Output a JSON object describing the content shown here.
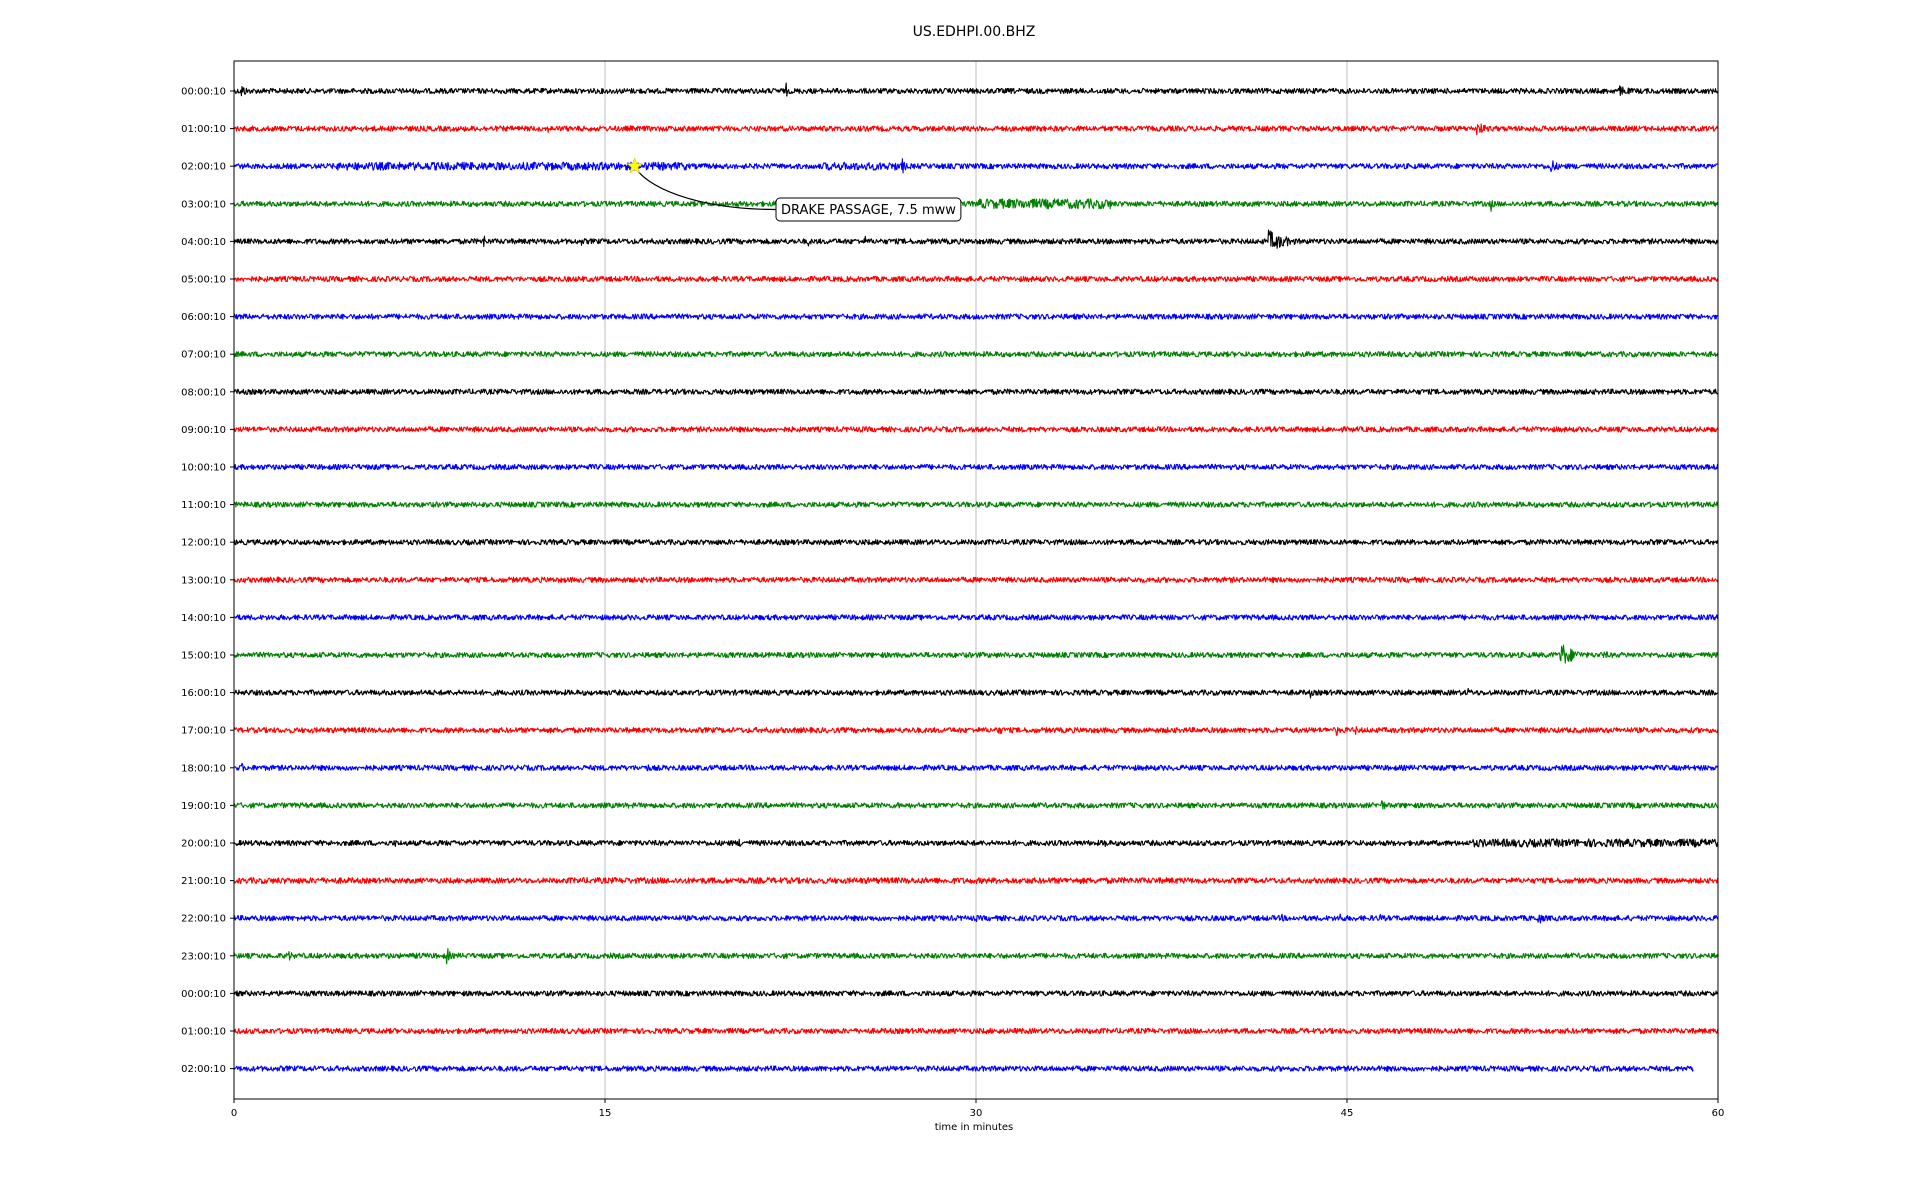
{
  "chart_data": {
    "type": "line",
    "title": "US.EDHPI.00.BHZ",
    "xlabel": "time in minutes",
    "ylabel": "",
    "xlim": [
      0,
      60
    ],
    "xticks": [
      0,
      15,
      30,
      45,
      60
    ],
    "grid": "vertical lines at x ticks",
    "line_colors": [
      "#000000",
      "#ff0000",
      "#0000ff",
      "#008000"
    ],
    "rows": [
      {
        "label": "00:00:10",
        "color": "#000000",
        "noise": 0.35,
        "x_end": 60,
        "events": [
          {
            "t": 0.3,
            "amp": 8,
            "dur": 0.6
          },
          {
            "t": 22.3,
            "amp": 12,
            "dur": 0.2
          },
          {
            "t": 56.0,
            "amp": 6,
            "dur": 1.5
          }
        ]
      },
      {
        "label": "01:00:10",
        "color": "#ff0000",
        "noise": 0.35,
        "x_end": 60,
        "events": [
          {
            "t": 12.7,
            "amp": 4,
            "dur": 0.2
          },
          {
            "t": 50.2,
            "amp": 8,
            "dur": 1.2
          }
        ]
      },
      {
        "label": "02:00:10",
        "color": "#0000ff",
        "noise": 0.35,
        "x_end": 60,
        "events": [
          {
            "t": 4.0,
            "amp": 4,
            "dur": 14.3
          },
          {
            "t": 23.8,
            "amp": 4,
            "dur": 3.2
          },
          {
            "t": 27.0,
            "amp": 10,
            "dur": 0.4
          },
          {
            "t": 53.2,
            "amp": 9,
            "dur": 0.8
          }
        ]
      },
      {
        "label": "03:00:10",
        "color": "#008000",
        "noise": 0.35,
        "x_end": 60,
        "events": [
          {
            "t": 5.2,
            "amp": 4,
            "dur": 1.0
          },
          {
            "t": 30.0,
            "amp": 5,
            "dur": 5.5
          },
          {
            "t": 50.8,
            "amp": 10,
            "dur": 0.3
          }
        ]
      },
      {
        "label": "04:00:10",
        "color": "#000000",
        "noise": 0.35,
        "x_end": 60,
        "events": [
          {
            "t": 4.7,
            "amp": 5,
            "dur": 0.3
          },
          {
            "t": 10.1,
            "amp": 10,
            "dur": 0.2
          },
          {
            "t": 14.0,
            "amp": 8,
            "dur": 0.2
          },
          {
            "t": 23.2,
            "amp": 6,
            "dur": 0.3
          },
          {
            "t": 25.5,
            "amp": 7,
            "dur": 0.3
          },
          {
            "t": 41.8,
            "amp": 12,
            "dur": 2.0
          }
        ]
      },
      {
        "label": "05:00:10",
        "color": "#ff0000",
        "noise": 0.35,
        "x_end": 60,
        "events": []
      },
      {
        "label": "06:00:10",
        "color": "#0000ff",
        "noise": 0.35,
        "x_end": 60,
        "events": []
      },
      {
        "label": "07:00:10",
        "color": "#008000",
        "noise": 0.35,
        "x_end": 60,
        "events": []
      },
      {
        "label": "08:00:10",
        "color": "#000000",
        "noise": 0.35,
        "x_end": 60,
        "events": []
      },
      {
        "label": "09:00:10",
        "color": "#ff0000",
        "noise": 0.35,
        "x_end": 60,
        "events": []
      },
      {
        "label": "10:00:10",
        "color": "#0000ff",
        "noise": 0.35,
        "x_end": 60,
        "events": []
      },
      {
        "label": "11:00:10",
        "color": "#008000",
        "noise": 0.35,
        "x_end": 60,
        "events": []
      },
      {
        "label": "12:00:10",
        "color": "#000000",
        "noise": 0.35,
        "x_end": 60,
        "events": []
      },
      {
        "label": "13:00:10",
        "color": "#ff0000",
        "noise": 0.35,
        "x_end": 60,
        "events": []
      },
      {
        "label": "14:00:10",
        "color": "#0000ff",
        "noise": 0.35,
        "x_end": 60,
        "events": []
      },
      {
        "label": "15:00:10",
        "color": "#008000",
        "noise": 0.35,
        "x_end": 60,
        "events": [
          {
            "t": 53.6,
            "amp": 14,
            "dur": 1.5
          },
          {
            "t": 55.3,
            "amp": 5,
            "dur": 1.2
          }
        ]
      },
      {
        "label": "16:00:10",
        "color": "#000000",
        "noise": 0.35,
        "x_end": 60,
        "events": [
          {
            "t": 43.5,
            "amp": 7,
            "dur": 0.3
          },
          {
            "t": 49.8,
            "amp": 6,
            "dur": 0.8
          }
        ]
      },
      {
        "label": "17:00:10",
        "color": "#ff0000",
        "noise": 0.35,
        "x_end": 60,
        "events": [
          {
            "t": 27.5,
            "amp": 8,
            "dur": 0.2
          },
          {
            "t": 30.8,
            "amp": 5,
            "dur": 1.5
          },
          {
            "t": 44.5,
            "amp": 10,
            "dur": 0.4
          },
          {
            "t": 45.3,
            "amp": 7,
            "dur": 0.3
          }
        ]
      },
      {
        "label": "18:00:10",
        "color": "#0000ff",
        "noise": 0.35,
        "x_end": 60,
        "events": [
          {
            "t": 0.3,
            "amp": 6,
            "dur": 0.4
          },
          {
            "t": 12.7,
            "amp": 6,
            "dur": 0.2
          },
          {
            "t": 16.7,
            "amp": 6,
            "dur": 0.3
          }
        ]
      },
      {
        "label": "19:00:10",
        "color": "#008000",
        "noise": 0.35,
        "x_end": 60,
        "events": [
          {
            "t": 12.7,
            "amp": 5,
            "dur": 0.2
          },
          {
            "t": 26.8,
            "amp": 6,
            "dur": 0.3
          },
          {
            "t": 46.3,
            "amp": 11,
            "dur": 0.5
          },
          {
            "t": 56.5,
            "amp": 4,
            "dur": 1.0
          }
        ]
      },
      {
        "label": "20:00:10",
        "color": "#000000",
        "noise": 0.35,
        "x_end": 60,
        "events": [
          {
            "t": 6.5,
            "amp": 6,
            "dur": 0.2
          },
          {
            "t": 20.4,
            "amp": 8,
            "dur": 0.3
          },
          {
            "t": 35.2,
            "amp": 9,
            "dur": 0.3
          },
          {
            "t": 50.0,
            "amp": 4,
            "dur": 10.0
          }
        ]
      },
      {
        "label": "21:00:10",
        "color": "#ff0000",
        "noise": 0.35,
        "x_end": 60,
        "events": [
          {
            "t": 0.0,
            "amp": 3,
            "dur": 5.0
          },
          {
            "t": 13.5,
            "amp": 3,
            "dur": 25.0
          },
          {
            "t": 26.5,
            "amp": 8,
            "dur": 0.2
          },
          {
            "t": 38.5,
            "amp": 6,
            "dur": 0.3
          }
        ]
      },
      {
        "label": "22:00:10",
        "color": "#0000ff",
        "noise": 0.35,
        "x_end": 60,
        "events": [
          {
            "t": 11.6,
            "amp": 4,
            "dur": 0.3
          },
          {
            "t": 30.0,
            "amp": 4,
            "dur": 0.5
          },
          {
            "t": 42.3,
            "amp": 6,
            "dur": 0.5
          },
          {
            "t": 44.7,
            "amp": 10,
            "dur": 0.3
          },
          {
            "t": 46.3,
            "amp": 6,
            "dur": 0.4
          },
          {
            "t": 52.7,
            "amp": 7,
            "dur": 0.8
          },
          {
            "t": 55.6,
            "amp": 10,
            "dur": 0.3
          }
        ]
      },
      {
        "label": "23:00:10",
        "color": "#008000",
        "noise": 0.35,
        "x_end": 60,
        "events": [
          {
            "t": 2.2,
            "amp": 9,
            "dur": 0.3
          },
          {
            "t": 3.5,
            "amp": 5,
            "dur": 0.2
          },
          {
            "t": 7.5,
            "amp": 8,
            "dur": 0.2
          },
          {
            "t": 8.6,
            "amp": 12,
            "dur": 0.3
          },
          {
            "t": 44.7,
            "amp": 10,
            "dur": 0.2
          }
        ]
      },
      {
        "label": "00:00:10",
        "color": "#000000",
        "noise": 0.35,
        "x_end": 60,
        "events": [
          {
            "t": 33.5,
            "amp": 6,
            "dur": 0.3
          }
        ]
      },
      {
        "label": "01:00:10",
        "color": "#ff0000",
        "noise": 0.35,
        "x_end": 60,
        "events": []
      },
      {
        "label": "02:00:10",
        "color": "#0000ff",
        "noise": 0.35,
        "x_end": 59.0,
        "events": []
      }
    ],
    "annotation": {
      "text": "DRAKE PASSAGE, 7.5 mww",
      "marker": "star",
      "marker_color": "#ffff00",
      "row_index": 2,
      "x": 16.2
    }
  }
}
